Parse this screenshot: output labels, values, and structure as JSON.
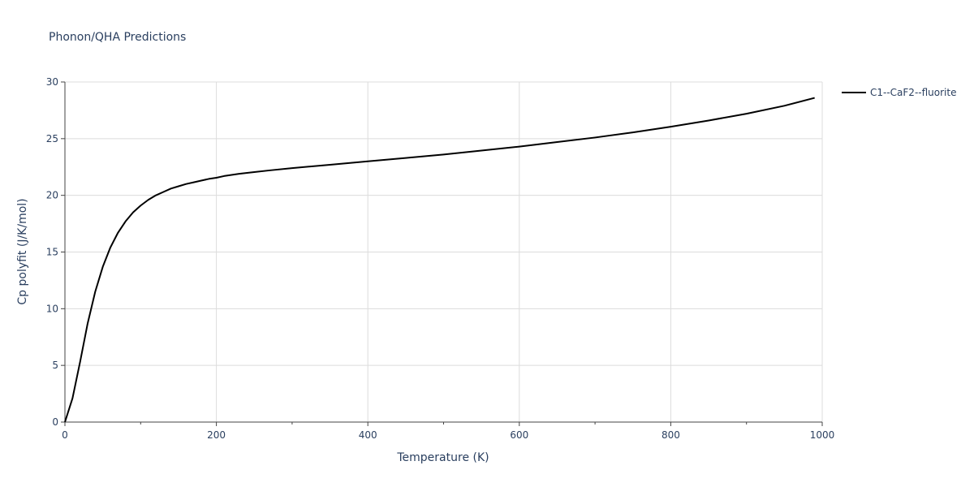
{
  "chart_data": {
    "type": "line",
    "title": "Phonon/QHA Predictions",
    "xlabel": "Temperature (K)",
    "ylabel": "Cp polyfit (J/K/mol)",
    "xlim": [
      0,
      1000
    ],
    "ylim": [
      0,
      30
    ],
    "x_ticks": [
      0,
      200,
      400,
      600,
      800,
      1000
    ],
    "y_ticks": [
      0,
      5,
      10,
      15,
      20,
      25,
      30
    ],
    "grid": true,
    "legend_position": "top-right",
    "series": [
      {
        "name": "C1--CaF2--fluorite",
        "color": "#000000",
        "x": [
          0,
          10,
          20,
          30,
          40,
          50,
          60,
          70,
          80,
          90,
          100,
          110,
          120,
          130,
          140,
          150,
          160,
          170,
          180,
          190,
          200,
          210,
          230,
          250,
          270,
          300,
          350,
          400,
          450,
          500,
          550,
          600,
          650,
          700,
          750,
          800,
          850,
          900,
          950,
          990
        ],
        "y": [
          0,
          2.1,
          5.3,
          8.7,
          11.5,
          13.7,
          15.4,
          16.7,
          17.7,
          18.5,
          19.1,
          19.6,
          20.0,
          20.3,
          20.6,
          20.8,
          21.0,
          21.15,
          21.3,
          21.45,
          21.55,
          21.7,
          21.9,
          22.05,
          22.2,
          22.4,
          22.7,
          23.0,
          23.3,
          23.6,
          23.95,
          24.3,
          24.7,
          25.1,
          25.55,
          26.05,
          26.6,
          27.2,
          27.9,
          28.6
        ]
      }
    ]
  }
}
